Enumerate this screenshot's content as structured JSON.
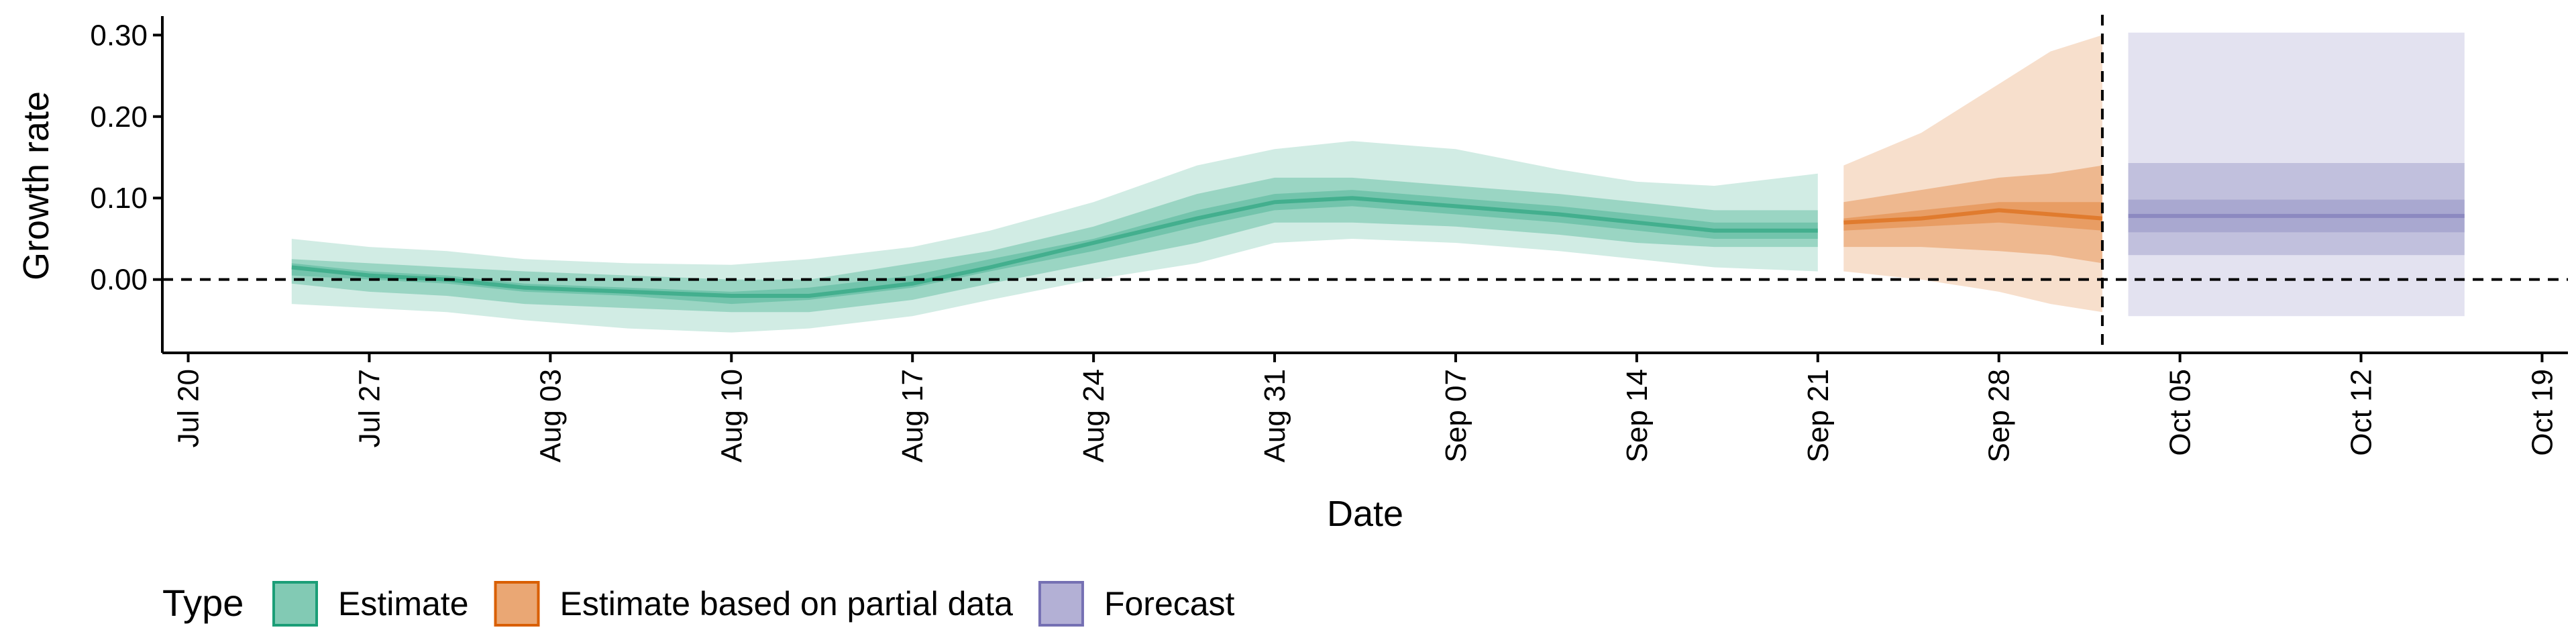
{
  "chart_data": {
    "type": "area",
    "xlabel": "Date",
    "ylabel": "Growth rate",
    "ylim": [
      -0.09,
      0.32
    ],
    "xlim": [
      "2020-07-19",
      "2020-10-20"
    ],
    "x_tick_labels": [
      {
        "date": "2020-07-20",
        "label": "Jul 20"
      },
      {
        "date": "2020-07-27",
        "label": "Jul 27"
      },
      {
        "date": "2020-08-03",
        "label": "Aug 03"
      },
      {
        "date": "2020-08-10",
        "label": "Aug 10"
      },
      {
        "date": "2020-08-17",
        "label": "Aug 17"
      },
      {
        "date": "2020-08-24",
        "label": "Aug 24"
      },
      {
        "date": "2020-08-31",
        "label": "Aug 31"
      },
      {
        "date": "2020-09-07",
        "label": "Sep 07"
      },
      {
        "date": "2020-09-14",
        "label": "Sep 14"
      },
      {
        "date": "2020-09-21",
        "label": "Sep 21"
      },
      {
        "date": "2020-09-28",
        "label": "Sep 28"
      },
      {
        "date": "2020-10-05",
        "label": "Oct 05"
      },
      {
        "date": "2020-10-12",
        "label": "Oct 12"
      },
      {
        "date": "2020-10-19",
        "label": "Oct 19"
      }
    ],
    "y_ticks": [
      {
        "value": 0.0,
        "label": "0.00"
      },
      {
        "value": 0.1,
        "label": "0.10"
      },
      {
        "value": 0.2,
        "label": "0.20"
      },
      {
        "value": 0.3,
        "label": "0.30"
      }
    ],
    "reference_lines": {
      "horizontal_y": 0.0,
      "vertical_date": "2020-10-02",
      "style": "dashed"
    },
    "grid": false,
    "legend": {
      "title": "Type",
      "position": "bottom-left",
      "entries": [
        {
          "label": "Estimate",
          "color": "#1b9e77"
        },
        {
          "label": "Estimate based on partial data",
          "color": "#d95f02"
        },
        {
          "label": "Forecast",
          "color": "#7570b3"
        }
      ]
    },
    "series": [
      {
        "name": "Estimate",
        "color": "#1b9e77",
        "points": [
          {
            "date": "2020-07-24",
            "median": 0.015,
            "lo20": 0.005,
            "hi20": 0.02,
            "lo50": -0.005,
            "hi50": 0.025,
            "lo90": -0.03,
            "hi90": 0.05
          },
          {
            "date": "2020-07-27",
            "median": 0.005,
            "lo20": 0.0,
            "hi20": 0.01,
            "lo50": -0.015,
            "hi50": 0.02,
            "lo90": -0.035,
            "hi90": 0.04
          },
          {
            "date": "2020-07-30",
            "median": 0.0,
            "lo20": -0.005,
            "hi20": 0.005,
            "lo50": -0.02,
            "hi50": 0.015,
            "lo90": -0.04,
            "hi90": 0.035
          },
          {
            "date": "2020-08-02",
            "median": -0.01,
            "lo20": -0.015,
            "hi20": -0.005,
            "lo50": -0.03,
            "hi50": 0.01,
            "lo90": -0.05,
            "hi90": 0.025
          },
          {
            "date": "2020-08-06",
            "median": -0.015,
            "lo20": -0.02,
            "hi20": -0.01,
            "lo50": -0.035,
            "hi50": 0.005,
            "lo90": -0.06,
            "hi90": 0.02
          },
          {
            "date": "2020-08-10",
            "median": -0.02,
            "lo20": -0.03,
            "hi20": -0.015,
            "lo50": -0.04,
            "hi50": 0.0,
            "lo90": -0.065,
            "hi90": 0.018
          },
          {
            "date": "2020-08-13",
            "median": -0.02,
            "lo20": -0.025,
            "hi20": -0.01,
            "lo50": -0.04,
            "hi50": 0.0,
            "lo90": -0.06,
            "hi90": 0.025
          },
          {
            "date": "2020-08-17",
            "median": -0.005,
            "lo20": -0.01,
            "hi20": 0.005,
            "lo50": -0.025,
            "hi50": 0.02,
            "lo90": -0.045,
            "hi90": 0.04
          },
          {
            "date": "2020-08-20",
            "median": 0.015,
            "lo20": 0.01,
            "hi20": 0.025,
            "lo50": -0.005,
            "hi50": 0.035,
            "lo90": -0.025,
            "hi90": 0.06
          },
          {
            "date": "2020-08-24",
            "median": 0.045,
            "lo20": 0.035,
            "hi20": 0.05,
            "lo50": 0.02,
            "hi50": 0.065,
            "lo90": 0.0,
            "hi90": 0.095
          },
          {
            "date": "2020-08-28",
            "median": 0.075,
            "lo20": 0.065,
            "hi20": 0.085,
            "lo50": 0.045,
            "hi50": 0.105,
            "lo90": 0.02,
            "hi90": 0.14
          },
          {
            "date": "2020-08-31",
            "median": 0.095,
            "lo20": 0.085,
            "hi20": 0.105,
            "lo50": 0.07,
            "hi50": 0.125,
            "lo90": 0.045,
            "hi90": 0.16
          },
          {
            "date": "2020-09-03",
            "median": 0.1,
            "lo20": 0.09,
            "hi20": 0.11,
            "lo50": 0.07,
            "hi50": 0.125,
            "lo90": 0.05,
            "hi90": 0.17
          },
          {
            "date": "2020-09-07",
            "median": 0.09,
            "lo20": 0.08,
            "hi20": 0.1,
            "lo50": 0.065,
            "hi50": 0.115,
            "lo90": 0.045,
            "hi90": 0.16
          },
          {
            "date": "2020-09-11",
            "median": 0.08,
            "lo20": 0.07,
            "hi20": 0.09,
            "lo50": 0.055,
            "hi50": 0.105,
            "lo90": 0.035,
            "hi90": 0.135
          },
          {
            "date": "2020-09-14",
            "median": 0.07,
            "lo20": 0.06,
            "hi20": 0.08,
            "lo50": 0.045,
            "hi50": 0.095,
            "lo90": 0.025,
            "hi90": 0.12
          },
          {
            "date": "2020-09-17",
            "median": 0.06,
            "lo20": 0.05,
            "hi20": 0.07,
            "lo50": 0.04,
            "hi50": 0.085,
            "lo90": 0.015,
            "hi90": 0.115
          },
          {
            "date": "2020-09-21",
            "median": 0.06,
            "lo20": 0.05,
            "hi20": 0.07,
            "lo50": 0.04,
            "hi50": 0.085,
            "lo90": 0.01,
            "hi90": 0.13
          }
        ]
      },
      {
        "name": "Estimate based on partial data",
        "color": "#d95f02",
        "points": [
          {
            "date": "2020-09-22",
            "median": 0.07,
            "lo20": 0.06,
            "hi20": 0.075,
            "lo50": 0.04,
            "hi50": 0.095,
            "lo90": 0.01,
            "hi90": 0.14
          },
          {
            "date": "2020-09-25",
            "median": 0.075,
            "lo20": 0.065,
            "hi20": 0.085,
            "lo50": 0.04,
            "hi50": 0.11,
            "lo90": 0.0,
            "hi90": 0.18
          },
          {
            "date": "2020-09-28",
            "median": 0.085,
            "lo20": 0.07,
            "hi20": 0.095,
            "lo50": 0.035,
            "hi50": 0.125,
            "lo90": -0.015,
            "hi90": 0.24
          },
          {
            "date": "2020-09-30",
            "median": 0.08,
            "lo20": 0.065,
            "hi20": 0.095,
            "lo50": 0.03,
            "hi50": 0.13,
            "lo90": -0.03,
            "hi90": 0.28
          },
          {
            "date": "2020-10-02",
            "median": 0.075,
            "lo20": 0.06,
            "hi20": 0.095,
            "lo50": 0.02,
            "hi50": 0.14,
            "lo90": -0.04,
            "hi90": 0.3
          }
        ]
      },
      {
        "name": "Forecast",
        "color": "#7570b3",
        "points": [
          {
            "date": "2020-10-03",
            "median": 0.078,
            "lo20": 0.058,
            "hi20": 0.098,
            "lo50": 0.03,
            "hi50": 0.143,
            "lo90": -0.045,
            "hi90": 0.303
          },
          {
            "date": "2020-10-16",
            "median": 0.078,
            "lo20": 0.058,
            "hi20": 0.098,
            "lo50": 0.03,
            "hi50": 0.143,
            "lo90": -0.045,
            "hi90": 0.303
          }
        ]
      }
    ]
  }
}
